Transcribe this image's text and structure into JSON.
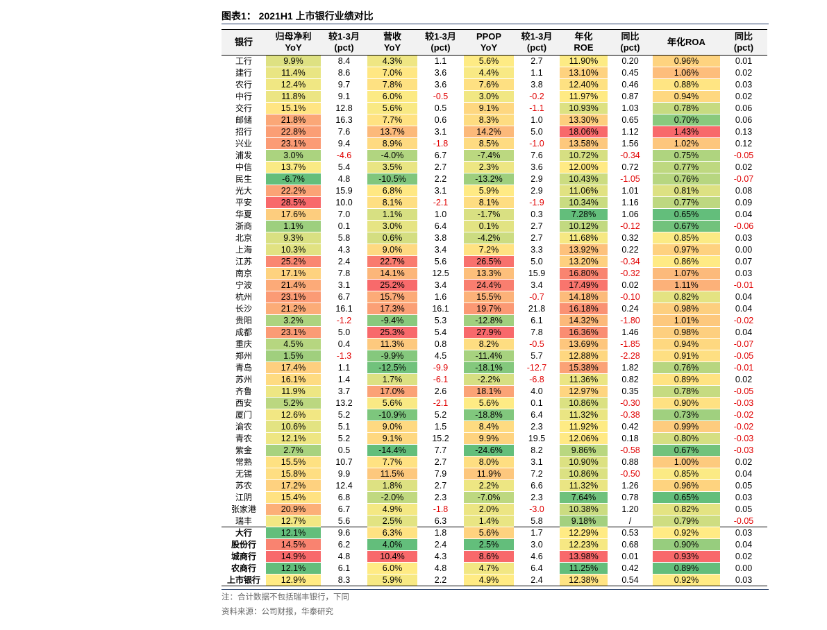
{
  "title": "图表1：  2021H1 上市银行业绩对比",
  "columns": [
    "银行",
    "归母净利 YoY",
    "较1-3月 (pct)",
    "营收 YoY",
    "较1-3月 (pct)",
    "PPOP YoY",
    "较1-3月 (pct)",
    "年化 ROE",
    "同比 (pct)",
    "年化ROA",
    "同比 (pct)"
  ],
  "rows": [
    [
      "工行",
      "9.9%",
      "8.4",
      "4.3%",
      "1.1",
      "5.6%",
      "2.7",
      "11.90%",
      "0.20",
      "0.96%",
      "0.01"
    ],
    [
      "建行",
      "11.4%",
      "8.6",
      "7.0%",
      "3.6",
      "4.4%",
      "1.1",
      "13.10%",
      "0.45",
      "1.06%",
      "0.02"
    ],
    [
      "农行",
      "12.4%",
      "9.7",
      "7.8%",
      "3.6",
      "7.6%",
      "3.8",
      "12.40%",
      "0.46",
      "0.88%",
      "0.03"
    ],
    [
      "中行",
      "11.8%",
      "9.1",
      "6.0%",
      "-0.5",
      "3.0%",
      "-0.2",
      "11.97%",
      "0.87",
      "0.94%",
      "0.02"
    ],
    [
      "交行",
      "15.1%",
      "12.8",
      "5.6%",
      "0.5",
      "9.1%",
      "-1.1",
      "10.93%",
      "1.03",
      "0.78%",
      "0.06"
    ],
    [
      "邮储",
      "21.8%",
      "16.3",
      "7.7%",
      "0.6",
      "8.3%",
      "1.0",
      "13.30%",
      "0.65",
      "0.70%",
      "0.06"
    ],
    [
      "招行",
      "22.8%",
      "7.6",
      "13.7%",
      "3.1",
      "14.2%",
      "5.0",
      "18.06%",
      "1.12",
      "1.43%",
      "0.13"
    ],
    [
      "兴业",
      "23.1%",
      "9.4",
      "8.9%",
      "-1.8",
      "8.5%",
      "-1.0",
      "13.58%",
      "1.56",
      "1.02%",
      "0.12"
    ],
    [
      "浦发",
      "3.0%",
      "-4.6",
      "-4.0%",
      "6.7",
      "-7.4%",
      "7.6",
      "10.72%",
      "-0.34",
      "0.75%",
      "-0.05"
    ],
    [
      "中信",
      "13.7%",
      "5.4",
      "3.5%",
      "2.7",
      "2.3%",
      "3.6",
      "12.00%",
      "0.72",
      "0.77%",
      "0.02"
    ],
    [
      "民生",
      "-6.7%",
      "4.8",
      "-10.5%",
      "2.2",
      "-13.2%",
      "2.9",
      "10.43%",
      "-1.05",
      "0.76%",
      "-0.07"
    ],
    [
      "光大",
      "22.2%",
      "15.9",
      "6.8%",
      "3.1",
      "5.9%",
      "2.9",
      "11.06%",
      "1.01",
      "0.81%",
      "0.08"
    ],
    [
      "平安",
      "28.5%",
      "10.0",
      "8.1%",
      "-2.1",
      "8.1%",
      "-1.9",
      "10.34%",
      "1.16",
      "0.77%",
      "0.09"
    ],
    [
      "华夏",
      "17.6%",
      "7.0",
      "1.1%",
      "1.0",
      "-1.7%",
      "0.3",
      "7.28%",
      "1.06",
      "0.65%",
      "0.04"
    ],
    [
      "浙商",
      "1.1%",
      "0.1",
      "3.0%",
      "6.4",
      "0.1%",
      "2.7",
      "10.12%",
      "-0.12",
      "0.67%",
      "-0.06"
    ],
    [
      "北京",
      "9.3%",
      "5.8",
      "0.6%",
      "3.8",
      "-4.2%",
      "2.7",
      "11.68%",
      "0.32",
      "0.85%",
      "0.03"
    ],
    [
      "上海",
      "10.3%",
      "4.3",
      "9.0%",
      "3.4",
      "7.2%",
      "3.3",
      "13.92%",
      "0.22",
      "0.97%",
      "0.00"
    ],
    [
      "江苏",
      "25.2%",
      "2.4",
      "22.7%",
      "5.6",
      "26.5%",
      "5.0",
      "13.20%",
      "-0.34",
      "0.86%",
      "0.07"
    ],
    [
      "南京",
      "17.1%",
      "7.8",
      "14.1%",
      "12.5",
      "13.3%",
      "15.9",
      "16.80%",
      "-0.32",
      "1.07%",
      "0.03"
    ],
    [
      "宁波",
      "21.4%",
      "3.1",
      "25.2%",
      "3.4",
      "24.4%",
      "3.4",
      "17.49%",
      "0.02",
      "1.11%",
      "-0.01"
    ],
    [
      "杭州",
      "23.1%",
      "6.7",
      "15.7%",
      "1.6",
      "15.5%",
      "-0.7",
      "14.18%",
      "-0.10",
      "0.82%",
      "0.04"
    ],
    [
      "长沙",
      "21.2%",
      "16.1",
      "17.3%",
      "16.1",
      "19.7%",
      "21.8",
      "16.18%",
      "0.24",
      "0.98%",
      "0.04"
    ],
    [
      "贵阳",
      "3.2%",
      "-1.2",
      "-9.4%",
      "5.3",
      "-12.8%",
      "6.1",
      "14.32%",
      "-1.80",
      "1.01%",
      "-0.02"
    ],
    [
      "成都",
      "23.1%",
      "5.0",
      "25.3%",
      "5.4",
      "27.9%",
      "7.8",
      "16.36%",
      "1.46",
      "0.98%",
      "0.04"
    ],
    [
      "重庆",
      "4.5%",
      "0.4",
      "11.3%",
      "0.8",
      "8.2%",
      "-0.5",
      "13.69%",
      "-1.85",
      "0.94%",
      "-0.07"
    ],
    [
      "郑州",
      "1.5%",
      "-1.3",
      "-9.9%",
      "4.5",
      "-11.4%",
      "5.7",
      "12.88%",
      "-2.28",
      "0.91%",
      "-0.05"
    ],
    [
      "青岛",
      "17.4%",
      "1.1",
      "-12.5%",
      "-9.9",
      "-18.1%",
      "-12.7",
      "15.38%",
      "1.82",
      "0.76%",
      "-0.01"
    ],
    [
      "苏州",
      "16.1%",
      "1.4",
      "1.7%",
      "-6.1",
      "-2.2%",
      "-6.8",
      "11.36%",
      "0.82",
      "0.89%",
      "0.02"
    ],
    [
      "齐鲁",
      "11.9%",
      "3.7",
      "17.0%",
      "2.6",
      "18.1%",
      "4.0",
      "12.97%",
      "0.35",
      "0.78%",
      "-0.05"
    ],
    [
      "西安",
      "5.2%",
      "13.2",
      "5.6%",
      "-2.1",
      "5.6%",
      "0.1",
      "10.86%",
      "-0.30",
      "0.90%",
      "-0.03"
    ],
    [
      "厦门",
      "12.6%",
      "5.2",
      "-10.9%",
      "5.2",
      "-18.8%",
      "6.4",
      "11.32%",
      "-0.38",
      "0.73%",
      "-0.02"
    ],
    [
      "渝农",
      "10.6%",
      "5.1",
      "9.0%",
      "1.5",
      "8.4%",
      "2.3",
      "11.92%",
      "0.42",
      "0.99%",
      "-0.02"
    ],
    [
      "青农",
      "12.1%",
      "5.2",
      "9.1%",
      "15.2",
      "9.9%",
      "19.5",
      "12.06%",
      "0.18",
      "0.80%",
      "-0.03"
    ],
    [
      "紫金",
      "2.7%",
      "0.5",
      "-14.4%",
      "7.7",
      "-24.6%",
      "8.2",
      "9.86%",
      "-0.58",
      "0.67%",
      "-0.03"
    ],
    [
      "常熟",
      "15.5%",
      "10.7",
      "7.7%",
      "2.7",
      "8.0%",
      "3.1",
      "10.90%",
      "0.88",
      "1.00%",
      "0.02"
    ],
    [
      "无锡",
      "15.8%",
      "9.9",
      "11.5%",
      "7.9",
      "11.9%",
      "7.2",
      "10.86%",
      "-0.50",
      "0.85%",
      "0.04"
    ],
    [
      "苏农",
      "17.2%",
      "12.4",
      "1.8%",
      "2.7",
      "2.2%",
      "6.6",
      "11.32%",
      "1.26",
      "0.96%",
      "0.05"
    ],
    [
      "江阴",
      "15.4%",
      "6.8",
      "-2.0%",
      "2.3",
      "-7.0%",
      "2.3",
      "7.64%",
      "0.78",
      "0.65%",
      "0.03"
    ],
    [
      "张家港",
      "20.9%",
      "6.7",
      "4.9%",
      "-1.8",
      "2.0%",
      "-3.0",
      "10.38%",
      "1.20",
      "0.82%",
      "0.05"
    ],
    [
      "瑞丰",
      "12.7%",
      "5.6",
      "2.5%",
      "6.3",
      "1.4%",
      "5.8",
      "9.18%",
      "/",
      "0.79%",
      "-0.05"
    ]
  ],
  "aggregates": [
    [
      "大行",
      "12.1%",
      "9.6",
      "6.3%",
      "1.8",
      "5.6%",
      "1.7",
      "12.29%",
      "0.53",
      "0.92%",
      "0.03"
    ],
    [
      "股份行",
      "14.5%",
      "6.2",
      "4.0%",
      "2.4",
      "2.5%",
      "3.0",
      "12.23%",
      "0.68",
      "0.90%",
      "0.04"
    ],
    [
      "城商行",
      "14.9%",
      "4.8",
      "10.4%",
      "4.3",
      "8.6%",
      "4.6",
      "13.98%",
      "0.01",
      "0.93%",
      "0.02"
    ],
    [
      "农商行",
      "12.1%",
      "6.1",
      "6.0%",
      "4.8",
      "4.7%",
      "6.4",
      "11.25%",
      "0.42",
      "0.89%",
      "0.00"
    ],
    [
      "上市银行",
      "12.9%",
      "8.3",
      "5.9%",
      "2.2",
      "4.9%",
      "2.4",
      "12.38%",
      "0.54",
      "0.92%",
      "0.03"
    ]
  ],
  "notes": {
    "note1": "注：合计数据不包括瑞丰银行，下同",
    "note2": "资料来源：公司财报，华泰研究"
  },
  "colors": {
    "heat_low": "#63be7b",
    "heat_mid": "#ffeb84",
    "heat_high": "#f8696b",
    "negative_text": "#e00000",
    "header_bg": "#f2f2f2",
    "rule": "#1f3864"
  }
}
